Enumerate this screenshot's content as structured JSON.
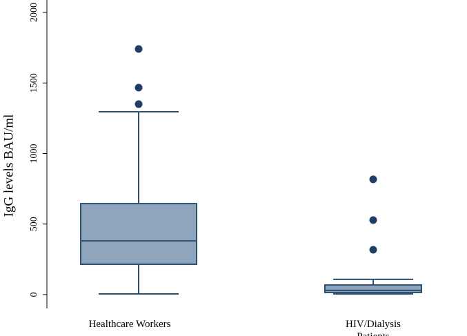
{
  "chart_data": {
    "type": "box",
    "y_label": "IgG levels BAU/ml",
    "categories": [
      "Healthcare Workers",
      "HIV/Dialysis\nPatients"
    ],
    "boxes": [
      {
        "low": 5,
        "q1": 215,
        "median": 381,
        "q3": 645,
        "high": 1296,
        "outliers": [
          1350,
          1467,
          1741
        ]
      },
      {
        "low": 5,
        "q1": 15,
        "median": 30,
        "q3": 68,
        "high": 108,
        "outliers": [
          318,
          528,
          817
        ]
      }
    ],
    "color": "#8ea5bc",
    "line_color": "#2b506f",
    "outlier_color": "#1f3f66",
    "ylim": [
      0,
      2000
    ],
    "yticks": [
      0,
      500,
      1000,
      1500,
      2000
    ]
  }
}
